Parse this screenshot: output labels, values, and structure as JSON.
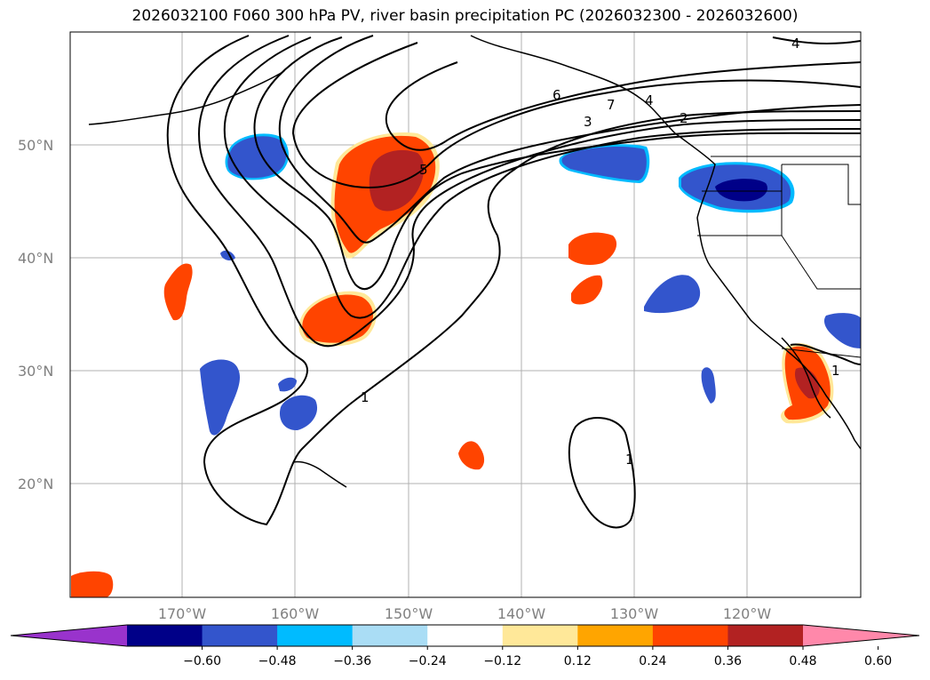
{
  "title": "2026032100 F060 300 hPa PV, river basin precipitation PC (2026032300 - 2026032600)",
  "lat_labels": [
    "20°N",
    "30°N",
    "40°N",
    "50°N"
  ],
  "lon_labels": [
    "170°W",
    "160°W",
    "150°W",
    "140°W",
    "130°W",
    "120°W"
  ],
  "colorbar": {
    "ticks": [
      "−0.60",
      "−0.48",
      "−0.36",
      "−0.24",
      "−0.12",
      "0.12",
      "0.24",
      "0.36",
      "0.48",
      "0.60"
    ],
    "colors": [
      "#9933cc",
      "#000088",
      "#3355cc",
      "#00bbff",
      "#aaddf5",
      "#ffffff",
      "#ffe899",
      "#ffa500",
      "#ff4400",
      "#b22222",
      "#ff88aa"
    ]
  },
  "contour_labels": [
    "1",
    "1",
    "1",
    "2",
    "3",
    "4",
    "4",
    "5",
    "6",
    "7"
  ],
  "colors": {
    "blue": "#3355cc",
    "dark_blue": "#000088",
    "cyan": "#00bbff",
    "orange_red": "#ff4400",
    "dark_red": "#b22222",
    "yellow": "#ffe899"
  }
}
